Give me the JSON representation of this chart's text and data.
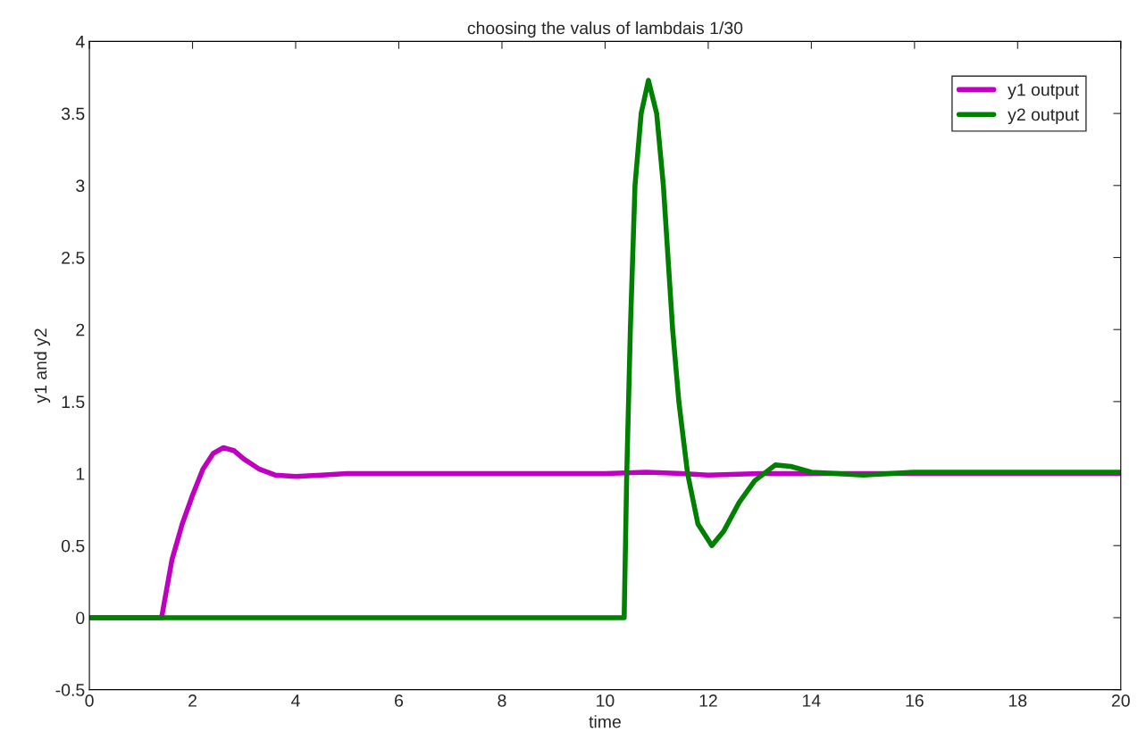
{
  "chart_data": {
    "type": "line",
    "title": "choosing the valus of lambdais 1/30",
    "xlabel": "time",
    "ylabel": "y1 and y2",
    "xlim": [
      0,
      20
    ],
    "ylim": [
      -0.5,
      4
    ],
    "xticks": [
      0,
      2,
      4,
      6,
      8,
      10,
      12,
      14,
      16,
      18,
      20
    ],
    "yticks": [
      -0.5,
      0,
      0.5,
      1,
      1.5,
      2,
      2.5,
      3,
      3.5,
      4
    ],
    "grid": false,
    "legend": "top right",
    "marker": "none",
    "line_style": "solid",
    "series": [
      {
        "name": "y1 output",
        "color": "#c000c0",
        "x": [
          0,
          1.4,
          1.45,
          1.6,
          1.8,
          2.0,
          2.2,
          2.4,
          2.6,
          2.8,
          3.0,
          3.3,
          3.6,
          4.0,
          4.5,
          5,
          10,
          10.8,
          11.5,
          12,
          13,
          20
        ],
        "values": [
          0,
          0,
          0.1,
          0.4,
          0.65,
          0.85,
          1.03,
          1.14,
          1.18,
          1.16,
          1.1,
          1.03,
          0.99,
          0.98,
          0.99,
          1.0,
          1.0,
          1.01,
          1.0,
          0.99,
          1.0,
          1.0
        ]
      },
      {
        "name": "y2 output",
        "color": "#008000",
        "x": [
          0,
          10.37,
          10.42,
          10.49,
          10.58,
          10.7,
          10.84,
          11.0,
          11.13,
          11.31,
          11.43,
          11.6,
          11.8,
          12.07,
          12.3,
          12.6,
          12.9,
          13.3,
          13.6,
          14,
          14.5,
          15,
          16,
          20
        ],
        "values": [
          0,
          0,
          1.0,
          2.0,
          3.0,
          3.5,
          3.73,
          3.5,
          3.0,
          2.0,
          1.5,
          1.0,
          0.65,
          0.5,
          0.6,
          0.8,
          0.95,
          1.06,
          1.05,
          1.01,
          1.0,
          0.99,
          1.01,
          1.01
        ]
      }
    ]
  }
}
